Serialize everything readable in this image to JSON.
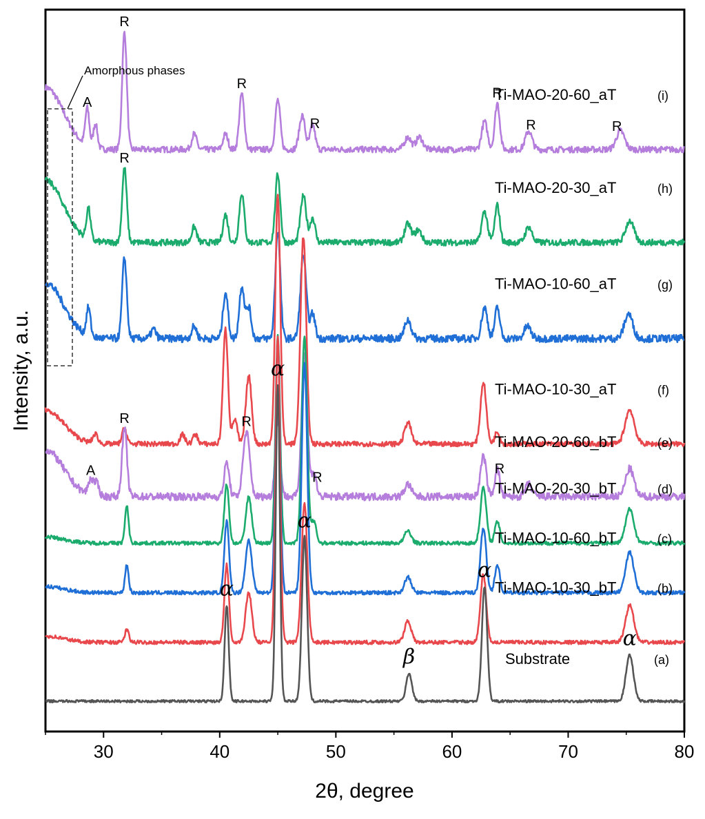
{
  "chart_data": {
    "type": "line",
    "title": "",
    "xlabel": "2θ, degree",
    "ylabel": "Intensity, a.u.",
    "xlim": [
      25,
      80
    ],
    "x_ticks": [
      30,
      40,
      50,
      60,
      70,
      80
    ],
    "x_tick_labels": [
      "30",
      "40",
      "50",
      "60",
      "70",
      "80"
    ],
    "grid": false,
    "legend": "none",
    "series": [
      {
        "name": "Ti-MAO-20-60_aT",
        "tag": "(i)",
        "color": "#b57edc",
        "offset": 8.6,
        "baseline": 0.3,
        "noise": 0.05,
        "hump": 1.0,
        "peaks": [
          {
            "x": 28.6,
            "h": 0.6,
            "w": 0.25
          },
          {
            "x": 29.3,
            "h": 0.4,
            "w": 0.25
          },
          {
            "x": 31.8,
            "h": 1.9,
            "w": 0.28
          },
          {
            "x": 37.8,
            "h": 0.25,
            "w": 0.3
          },
          {
            "x": 40.5,
            "h": 0.25,
            "w": 0.3
          },
          {
            "x": 41.9,
            "h": 0.9,
            "w": 0.3
          },
          {
            "x": 45.0,
            "h": 0.8,
            "w": 0.3
          },
          {
            "x": 47.1,
            "h": 0.55,
            "w": 0.35
          },
          {
            "x": 48.0,
            "h": 0.4,
            "w": 0.3
          },
          {
            "x": 56.2,
            "h": 0.2,
            "w": 0.4
          },
          {
            "x": 57.2,
            "h": 0.2,
            "w": 0.4
          },
          {
            "x": 62.8,
            "h": 0.45,
            "w": 0.35
          },
          {
            "x": 63.9,
            "h": 0.75,
            "w": 0.3
          },
          {
            "x": 66.6,
            "h": 0.3,
            "w": 0.4
          },
          {
            "x": 74.5,
            "h": 0.3,
            "w": 0.5
          }
        ]
      },
      {
        "name": "Ti-MAO-20-30_aT",
        "tag": "(h)",
        "color": "#1aab6d",
        "offset": 7.1,
        "baseline": 0.3,
        "noise": 0.05,
        "hump": 1.0,
        "peaks": [
          {
            "x": 28.7,
            "h": 0.5,
            "w": 0.25
          },
          {
            "x": 31.8,
            "h": 1.2,
            "w": 0.28
          },
          {
            "x": 37.8,
            "h": 0.25,
            "w": 0.3
          },
          {
            "x": 40.5,
            "h": 0.45,
            "w": 0.3
          },
          {
            "x": 41.9,
            "h": 0.8,
            "w": 0.3
          },
          {
            "x": 45.0,
            "h": 1.1,
            "w": 0.3
          },
          {
            "x": 47.2,
            "h": 0.75,
            "w": 0.35
          },
          {
            "x": 48.0,
            "h": 0.4,
            "w": 0.3
          },
          {
            "x": 56.2,
            "h": 0.3,
            "w": 0.4
          },
          {
            "x": 57.1,
            "h": 0.2,
            "w": 0.4
          },
          {
            "x": 62.8,
            "h": 0.5,
            "w": 0.35
          },
          {
            "x": 63.9,
            "h": 0.6,
            "w": 0.3
          },
          {
            "x": 66.6,
            "h": 0.25,
            "w": 0.4
          },
          {
            "x": 75.3,
            "h": 0.35,
            "w": 0.5
          }
        ]
      },
      {
        "name": "Ti-MAO-10-60_aT",
        "tag": "(g)",
        "color": "#1f6fd6",
        "offset": 5.55,
        "baseline": 0.3,
        "noise": 0.06,
        "hump": 0.9,
        "peaks": [
          {
            "x": 28.7,
            "h": 0.45,
            "w": 0.25
          },
          {
            "x": 31.8,
            "h": 1.3,
            "w": 0.28
          },
          {
            "x": 34.3,
            "h": 0.15,
            "w": 0.3
          },
          {
            "x": 37.8,
            "h": 0.2,
            "w": 0.3
          },
          {
            "x": 40.5,
            "h": 0.75,
            "w": 0.3
          },
          {
            "x": 41.9,
            "h": 0.85,
            "w": 0.3
          },
          {
            "x": 42.5,
            "h": 0.5,
            "w": 0.3
          },
          {
            "x": 45.0,
            "h": 1.75,
            "w": 0.3
          },
          {
            "x": 47.2,
            "h": 1.35,
            "w": 0.35
          },
          {
            "x": 48.0,
            "h": 0.4,
            "w": 0.3
          },
          {
            "x": 56.2,
            "h": 0.3,
            "w": 0.4
          },
          {
            "x": 62.8,
            "h": 0.5,
            "w": 0.35
          },
          {
            "x": 63.9,
            "h": 0.5,
            "w": 0.3
          },
          {
            "x": 66.5,
            "h": 0.2,
            "w": 0.4
          },
          {
            "x": 75.2,
            "h": 0.4,
            "w": 0.5
          }
        ]
      },
      {
        "name": "Ti-MAO-10-30_aT",
        "tag": "(f)",
        "color": "#e8474c",
        "offset": 3.85,
        "baseline": 0.3,
        "noise": 0.04,
        "hump": 0.55,
        "peaks": [
          {
            "x": 29.3,
            "h": 0.15,
            "w": 0.3
          },
          {
            "x": 31.8,
            "h": 0.25,
            "w": 0.28
          },
          {
            "x": 36.8,
            "h": 0.15,
            "w": 0.3
          },
          {
            "x": 37.9,
            "h": 0.15,
            "w": 0.3
          },
          {
            "x": 40.5,
            "h": 1.85,
            "w": 0.3
          },
          {
            "x": 41.3,
            "h": 0.4,
            "w": 0.3
          },
          {
            "x": 42.5,
            "h": 1.1,
            "w": 0.35
          },
          {
            "x": 45.0,
            "h": 4.05,
            "w": 0.3
          },
          {
            "x": 47.2,
            "h": 3.35,
            "w": 0.35
          },
          {
            "x": 56.2,
            "h": 0.35,
            "w": 0.4
          },
          {
            "x": 62.7,
            "h": 1.0,
            "w": 0.35
          },
          {
            "x": 63.9,
            "h": 0.2,
            "w": 0.3
          },
          {
            "x": 75.3,
            "h": 0.55,
            "w": 0.55
          }
        ]
      },
      {
        "name": "Ti-MAO-20-60_bT",
        "tag": "(e)",
        "color": "#b57edc",
        "offset": 3.0,
        "baseline": 0.3,
        "noise": 0.06,
        "hump": 0.75,
        "peaks": [
          {
            "x": 28.9,
            "h": 0.25,
            "w": 0.3
          },
          {
            "x": 29.4,
            "h": 0.2,
            "w": 0.3
          },
          {
            "x": 31.8,
            "h": 1.1,
            "w": 0.3
          },
          {
            "x": 40.6,
            "h": 0.55,
            "w": 0.3
          },
          {
            "x": 42.3,
            "h": 1.05,
            "w": 0.4
          },
          {
            "x": 45.0,
            "h": 1.25,
            "w": 0.3
          },
          {
            "x": 47.3,
            "h": 2.3,
            "w": 0.35
          },
          {
            "x": 48.1,
            "h": 0.4,
            "w": 0.3
          },
          {
            "x": 56.2,
            "h": 0.2,
            "w": 0.4
          },
          {
            "x": 62.7,
            "h": 0.65,
            "w": 0.35
          },
          {
            "x": 63.9,
            "h": 0.45,
            "w": 0.3
          },
          {
            "x": 66.6,
            "h": 0.2,
            "w": 0.4
          },
          {
            "x": 75.3,
            "h": 0.45,
            "w": 0.5
          }
        ]
      },
      {
        "name": "Ti-MAO-20-30_bT",
        "tag": "(d)",
        "color": "#1aab6d",
        "offset": 2.25,
        "baseline": 0.3,
        "noise": 0.03,
        "hump": 0.1,
        "peaks": [
          {
            "x": 32.0,
            "h": 0.6,
            "w": 0.22
          },
          {
            "x": 40.6,
            "h": 0.95,
            "w": 0.28
          },
          {
            "x": 42.5,
            "h": 0.75,
            "w": 0.35
          },
          {
            "x": 45.0,
            "h": 3.35,
            "w": 0.28
          },
          {
            "x": 47.3,
            "h": 3.35,
            "w": 0.33
          },
          {
            "x": 48.1,
            "h": 0.35,
            "w": 0.3
          },
          {
            "x": 56.2,
            "h": 0.2,
            "w": 0.4
          },
          {
            "x": 62.7,
            "h": 0.9,
            "w": 0.35
          },
          {
            "x": 63.9,
            "h": 0.35,
            "w": 0.3
          },
          {
            "x": 75.3,
            "h": 0.55,
            "w": 0.5
          }
        ]
      },
      {
        "name": "Ti-MAO-10-60_bT",
        "tag": "(c)",
        "color": "#1f6fd6",
        "offset": 1.45,
        "baseline": 0.3,
        "noise": 0.03,
        "hump": 0.1,
        "peaks": [
          {
            "x": 32.0,
            "h": 0.45,
            "w": 0.22
          },
          {
            "x": 40.6,
            "h": 1.15,
            "w": 0.28
          },
          {
            "x": 42.5,
            "h": 0.85,
            "w": 0.38
          },
          {
            "x": 45.0,
            "h": 4.1,
            "w": 0.28
          },
          {
            "x": 47.3,
            "h": 3.7,
            "w": 0.33
          },
          {
            "x": 56.2,
            "h": 0.25,
            "w": 0.4
          },
          {
            "x": 62.7,
            "h": 1.05,
            "w": 0.35
          },
          {
            "x": 63.9,
            "h": 0.45,
            "w": 0.3
          },
          {
            "x": 75.3,
            "h": 0.65,
            "w": 0.5
          }
        ]
      },
      {
        "name": "Ti-MAO-10-30_bT",
        "tag": "(b)",
        "color": "#e8474c",
        "offset": 0.65,
        "baseline": 0.3,
        "noise": 0.03,
        "hump": 0.1,
        "peaks": [
          {
            "x": 32.0,
            "h": 0.2,
            "w": 0.25
          },
          {
            "x": 40.6,
            "h": 1.25,
            "w": 0.28
          },
          {
            "x": 42.5,
            "h": 0.8,
            "w": 0.38
          },
          {
            "x": 45.0,
            "h": 4.95,
            "w": 0.28
          },
          {
            "x": 47.3,
            "h": 2.25,
            "w": 0.35
          },
          {
            "x": 56.2,
            "h": 0.35,
            "w": 0.4
          },
          {
            "x": 62.7,
            "h": 1.1,
            "w": 0.35
          },
          {
            "x": 75.3,
            "h": 0.6,
            "w": 0.5
          }
        ]
      },
      {
        "name": "Substrate",
        "tag": "(a)",
        "color": "#555555",
        "offset": 0.0,
        "baseline": 0.0,
        "noise": 0.02,
        "hump": 0.0,
        "peaks": [
          {
            "x": 40.6,
            "h": 1.55,
            "w": 0.25
          },
          {
            "x": 45.0,
            "h": 5.1,
            "w": 0.25
          },
          {
            "x": 47.3,
            "h": 2.65,
            "w": 0.32
          },
          {
            "x": 56.3,
            "h": 0.45,
            "w": 0.35
          },
          {
            "x": 62.8,
            "h": 1.85,
            "w": 0.32
          },
          {
            "x": 75.3,
            "h": 0.75,
            "w": 0.45
          }
        ]
      }
    ],
    "annotations": [
      {
        "text": "Amorphous phases",
        "kind": "note"
      },
      {
        "text": "A",
        "x": 28.6,
        "series": "Ti-MAO-20-60_aT"
      },
      {
        "text": "R",
        "x": 31.8,
        "series": "Ti-MAO-20-60_aT"
      },
      {
        "text": "R",
        "x": 41.9,
        "series": "Ti-MAO-20-60_aT"
      },
      {
        "text": "R",
        "x": 48.2,
        "series": "Ti-MAO-20-60_aT"
      },
      {
        "text": "R",
        "x": 63.9,
        "series": "Ti-MAO-20-60_aT"
      },
      {
        "text": "R",
        "x": 66.8,
        "series": "Ti-MAO-20-60_aT"
      },
      {
        "text": "R",
        "x": 74.2,
        "series": "Ti-MAO-20-60_aT"
      },
      {
        "text": "R",
        "x": 31.8,
        "series": "Ti-MAO-20-30_aT"
      },
      {
        "text": "A",
        "x": 28.9,
        "series": "Ti-MAO-20-60_bT"
      },
      {
        "text": "R",
        "x": 31.8,
        "series": "Ti-MAO-20-60_bT"
      },
      {
        "text": "R",
        "x": 42.3,
        "series": "Ti-MAO-20-60_bT"
      },
      {
        "text": "R",
        "x": 48.4,
        "series": "Ti-MAO-20-60_bT"
      },
      {
        "text": "R",
        "x": 64.1,
        "series": "Ti-MAO-20-60_bT"
      },
      {
        "text": "α",
        "x": 40.6,
        "series": "Substrate"
      },
      {
        "text": "α",
        "x": 45.0,
        "series": "Substrate"
      },
      {
        "text": "α",
        "x": 47.3,
        "series": "Substrate"
      },
      {
        "text": "β",
        "x": 56.3,
        "series": "Substrate"
      },
      {
        "text": "α",
        "x": 62.8,
        "series": "Substrate"
      },
      {
        "text": "α",
        "x": 75.3,
        "series": "Substrate"
      }
    ]
  }
}
